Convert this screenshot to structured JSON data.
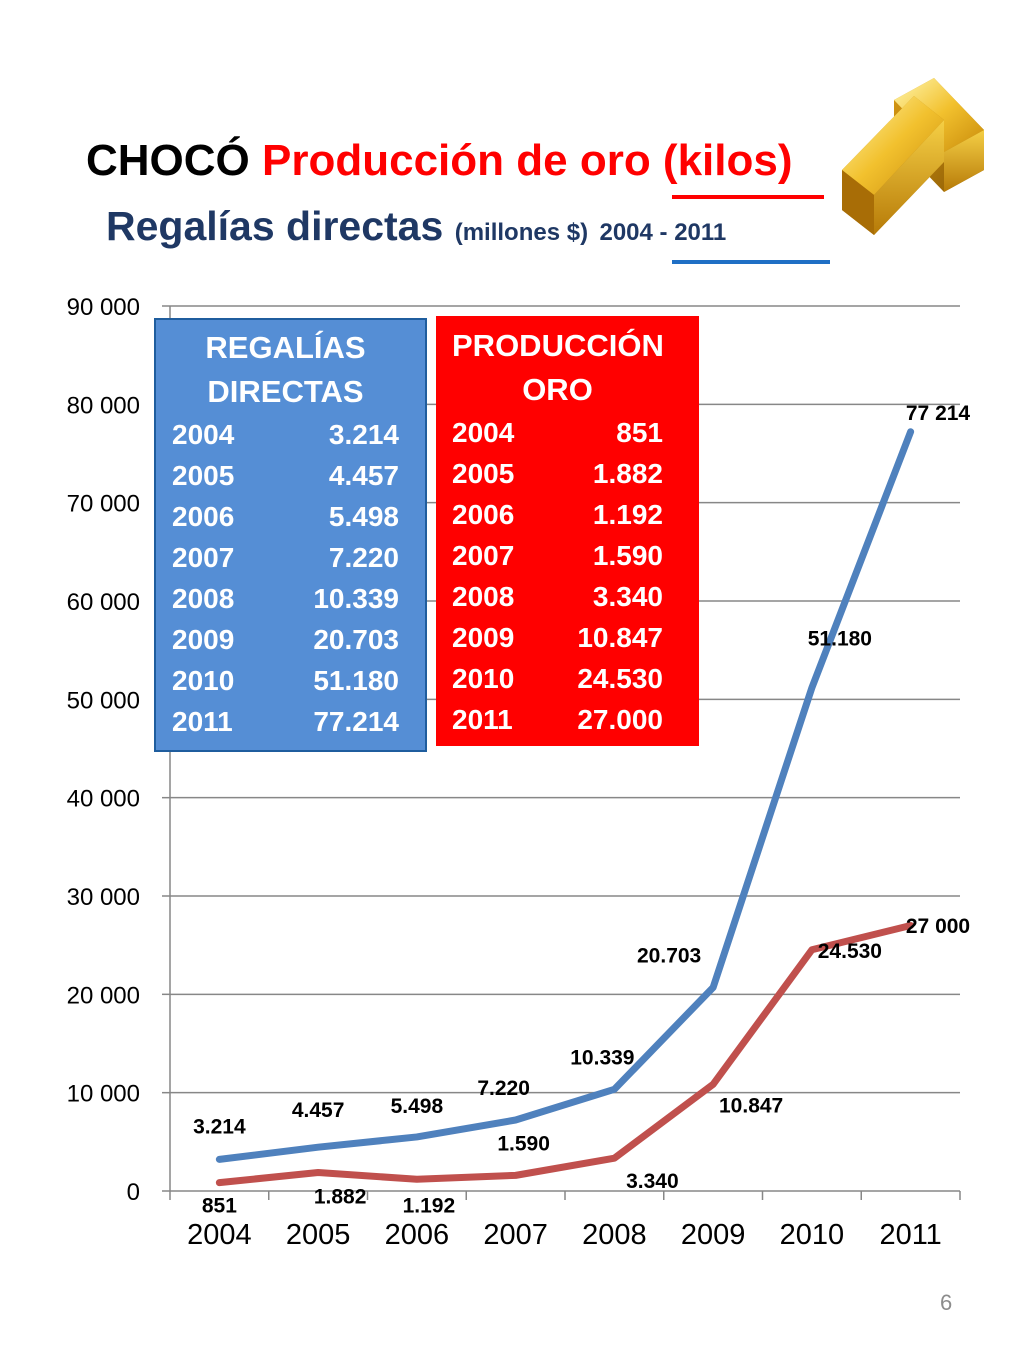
{
  "title": {
    "line1_region": "CHOCÓ",
    "line1_series": "Producción de oro (kilos)",
    "line2_main": "Regalías directas",
    "line2_unit": "(millones $)",
    "line2_years": "2004 - 2011"
  },
  "colors": {
    "regalias": "#4f81bd",
    "produccion": "#c0504d",
    "panel_regalias": "#558ed5",
    "panel_produccion": "#ff0000",
    "title_dark": "#1f3864",
    "title_red": "#ff0000"
  },
  "panels": {
    "regalias": {
      "header": [
        "REGALÍAS",
        "DIRECTAS"
      ],
      "rows": [
        {
          "year": "2004",
          "value": "3.214"
        },
        {
          "year": "2005",
          "value": "4.457"
        },
        {
          "year": "2006",
          "value": "5.498"
        },
        {
          "year": "2007",
          "value": "7.220"
        },
        {
          "year": "2008",
          "value": "10.339"
        },
        {
          "year": "2009",
          "value": "20.703"
        },
        {
          "year": "2010",
          "value": "51.180"
        },
        {
          "year": "2011",
          "value": "77.214"
        }
      ]
    },
    "produccion": {
      "header": [
        "PRODUCCIÓN",
        "ORO"
      ],
      "rows": [
        {
          "year": "2004",
          "value": "851"
        },
        {
          "year": "2005",
          "value": "1.882"
        },
        {
          "year": "2006",
          "value": "1.192"
        },
        {
          "year": "2007",
          "value": "1.590"
        },
        {
          "year": "2008",
          "value": "3.340"
        },
        {
          "year": "2009",
          "value": "10.847"
        },
        {
          "year": "2010",
          "value": "24.530"
        },
        {
          "year": "2011",
          "value": "27.000"
        }
      ]
    }
  },
  "chart_data": {
    "type": "line",
    "categories": [
      "2004",
      "2005",
      "2006",
      "2007",
      "2008",
      "2009",
      "2010",
      "2011"
    ],
    "ylim": [
      0,
      90000
    ],
    "y_ticks": [
      0,
      10000,
      20000,
      30000,
      40000,
      50000,
      60000,
      70000,
      80000,
      90000
    ],
    "y_tick_labels": [
      "0",
      "10 000",
      "20 000",
      "30 000",
      "40 000",
      "50 000",
      "60 000",
      "70 000",
      "80 000",
      "90 000"
    ],
    "grid": true,
    "legend": "none",
    "series": [
      {
        "key": "regalias",
        "values": [
          3214,
          4457,
          5498,
          7220,
          10339,
          20703,
          51180,
          77214
        ],
        "labels": [
          "3.214",
          "4.457",
          "5.498",
          "7.220",
          "10.339",
          "20.703",
          "51.180",
          "77 214"
        ]
      },
      {
        "key": "produccion",
        "values": [
          851,
          1882,
          1192,
          1590,
          3340,
          10847,
          24530,
          27000
        ],
        "labels": [
          "851",
          "1.882",
          "1.192",
          "1.590",
          "3.340",
          "10.847",
          "24.530",
          "27 000"
        ]
      }
    ]
  },
  "page_number": "6"
}
